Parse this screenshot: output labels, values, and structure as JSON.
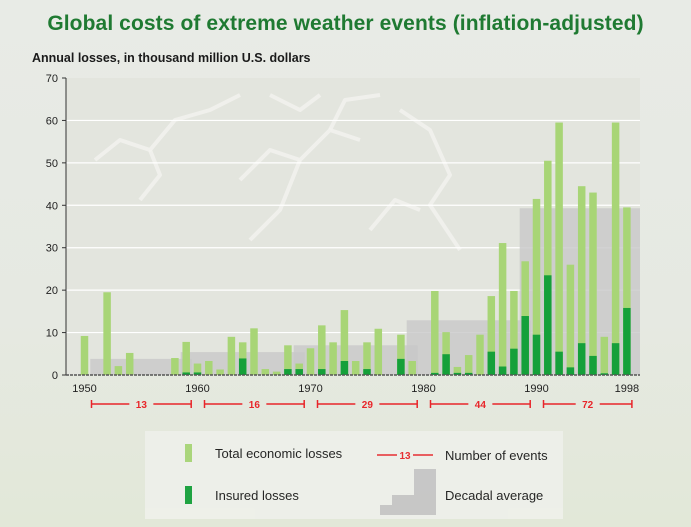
{
  "chart_data": {
    "type": "bar",
    "title": "Global costs of extreme weather events (inflation-adjusted)",
    "ylabel": "Annual losses, in thousand million U.S. dollars",
    "xlabel": "",
    "ylim": [
      0,
      70
    ],
    "yticks": [
      0,
      10,
      20,
      30,
      40,
      50,
      60,
      70
    ],
    "xlim": [
      1950,
      1998
    ],
    "xticks": [
      1950,
      1960,
      1970,
      1980,
      1990,
      1998
    ],
    "grid": true,
    "series": [
      {
        "name": "Total economic losses",
        "color": "#a8d576",
        "points": [
          [
            1950,
            9.2
          ],
          [
            1952,
            19.5
          ],
          [
            1953,
            2.1
          ],
          [
            1954,
            5.2
          ],
          [
            1958,
            4.0
          ],
          [
            1959,
            7.8
          ],
          [
            1960,
            2.7
          ],
          [
            1961,
            3.3
          ],
          [
            1962,
            1.3
          ],
          [
            1963,
            9.0
          ],
          [
            1964,
            7.7
          ],
          [
            1965,
            11.0
          ],
          [
            1966,
            1.4
          ],
          [
            1967,
            0.8
          ],
          [
            1968,
            7.0
          ],
          [
            1969,
            2.7
          ],
          [
            1970,
            6.3
          ],
          [
            1971,
            11.7
          ],
          [
            1972,
            7.7
          ],
          [
            1973,
            15.3
          ],
          [
            1974,
            3.3
          ],
          [
            1975,
            7.7
          ],
          [
            1976,
            10.9
          ],
          [
            1978,
            9.5
          ],
          [
            1979,
            3.3
          ],
          [
            1981,
            19.8
          ],
          [
            1982,
            10.1
          ],
          [
            1983,
            1.9
          ],
          [
            1984,
            4.7
          ],
          [
            1985,
            9.5
          ],
          [
            1986,
            18.6
          ],
          [
            1987,
            31.1
          ],
          [
            1988,
            19.8
          ],
          [
            1989,
            26.8
          ],
          [
            1990,
            41.5
          ],
          [
            1991,
            50.5
          ],
          [
            1992,
            59.5
          ],
          [
            1993,
            26.0
          ],
          [
            1994,
            44.5
          ],
          [
            1995,
            43.0
          ],
          [
            1996,
            9.0
          ],
          [
            1997,
            59.5
          ],
          [
            1998,
            39.5
          ]
        ]
      },
      {
        "name": "Insured losses",
        "color": "#15a03a",
        "points": [
          [
            1959,
            0.6
          ],
          [
            1960,
            0.6
          ],
          [
            1964,
            3.9
          ],
          [
            1968,
            1.4
          ],
          [
            1969,
            1.4
          ],
          [
            1971,
            1.4
          ],
          [
            1973,
            3.3
          ],
          [
            1975,
            1.4
          ],
          [
            1978,
            3.8
          ],
          [
            1981,
            0.5
          ],
          [
            1982,
            4.9
          ],
          [
            1983,
            0.5
          ],
          [
            1984,
            0.5
          ],
          [
            1986,
            5.5
          ],
          [
            1987,
            2.0
          ],
          [
            1988,
            6.2
          ],
          [
            1989,
            13.9
          ],
          [
            1990,
            9.5
          ],
          [
            1991,
            23.5
          ],
          [
            1992,
            5.5
          ],
          [
            1993,
            1.8
          ],
          [
            1994,
            7.5
          ],
          [
            1995,
            4.5
          ],
          [
            1996,
            0.4
          ],
          [
            1997,
            7.5
          ],
          [
            1998,
            15.8
          ]
        ]
      }
    ],
    "decadal_average": {
      "name": "Decadal average",
      "color": "#c8c8c8",
      "decades": [
        {
          "start": 1951,
          "end": 1959,
          "value": 3.8
        },
        {
          "start": 1959,
          "end": 1969,
          "value": 5.4
        },
        {
          "start": 1969,
          "end": 1979,
          "value": 7.0
        },
        {
          "start": 1979,
          "end": 1989,
          "value": 12.9
        },
        {
          "start": 1989,
          "end": 1998,
          "value": 39.3
        }
      ]
    },
    "event_counts": {
      "name": "Number of events",
      "color": "#e8252a",
      "periods": [
        {
          "start": 1950,
          "end": 1959,
          "label": "13"
        },
        {
          "start": 1960,
          "end": 1969,
          "label": "16"
        },
        {
          "start": 1970,
          "end": 1979,
          "label": "29"
        },
        {
          "start": 1980,
          "end": 1989,
          "label": "44"
        },
        {
          "start": 1990,
          "end": 1998,
          "label": "72"
        }
      ]
    },
    "legend": {
      "placement": "bottom",
      "items": [
        {
          "key": "total",
          "label": "Total economic losses"
        },
        {
          "key": "insured",
          "label": "Insured losses"
        },
        {
          "key": "events",
          "label": "Number of events",
          "sample": "13"
        },
        {
          "key": "decadal",
          "label": "Decadal average"
        }
      ]
    }
  }
}
